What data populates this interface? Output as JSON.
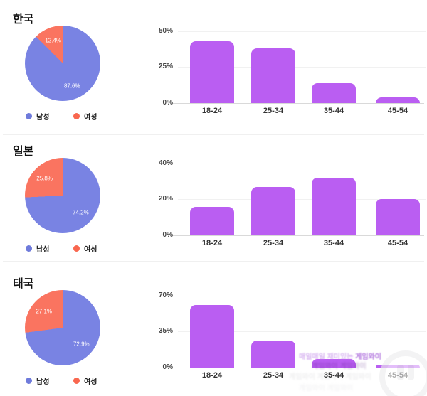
{
  "page": {
    "background": "#ffffff"
  },
  "colors": {
    "male": "#7983e3",
    "female": "#fa7460",
    "male_dot": "#6f7bdb",
    "female_dot": "#f9674f",
    "bar": "#ba5ef2",
    "grid": "#f1f1f1",
    "axis": "#d9d9d9",
    "pie_label": "#ffffff"
  },
  "legend": {
    "male": "남성",
    "female": "여성"
  },
  "chart_data": [
    {
      "country": "한국",
      "pie": {
        "type": "pie",
        "labels": [
          "남성",
          "여성"
        ],
        "values": [
          87.6,
          12.4
        ],
        "value_labels": [
          "87.6%",
          "12.4%"
        ],
        "legend_position": "bottom"
      },
      "bars": {
        "type": "bar",
        "categories": [
          "18-24",
          "25-34",
          "35-44",
          "45-54"
        ],
        "values": [
          43,
          38,
          14,
          4
        ],
        "unit": "%",
        "ylim": [
          0,
          50
        ],
        "yticks": [
          "50%",
          "25%",
          "0%"
        ],
        "grid": "horizontal"
      }
    },
    {
      "country": "일본",
      "pie": {
        "type": "pie",
        "labels": [
          "남성",
          "여성"
        ],
        "values": [
          74.2,
          25.8
        ],
        "value_labels": [
          "74.2%",
          "25.8%"
        ],
        "legend_position": "bottom"
      },
      "bars": {
        "type": "bar",
        "categories": [
          "18-24",
          "25-34",
          "35-44",
          "45-54"
        ],
        "values": [
          16,
          27,
          32,
          20
        ],
        "unit": "%",
        "ylim": [
          0,
          40
        ],
        "yticks": [
          "40%",
          "20%",
          "0%"
        ],
        "grid": "horizontal"
      }
    },
    {
      "country": "태국",
      "pie": {
        "type": "pie",
        "labels": [
          "남성",
          "여성"
        ],
        "values": [
          72.9,
          27.1
        ],
        "value_labels": [
          "72.9%",
          "27.1%"
        ],
        "legend_position": "bottom"
      },
      "bars": {
        "type": "bar",
        "categories": [
          "18-24",
          "25-34",
          "35-44",
          "45-54"
        ],
        "values": [
          61,
          26,
          8,
          3
        ],
        "unit": "%",
        "ylim": [
          0,
          70
        ],
        "yticks": [
          "70%",
          "35%",
          "0%"
        ],
        "grid": "horizontal"
      }
    }
  ],
  "watermark": {
    "prefix": "매일매일 재미있는",
    "brand": "게임와이",
    "on_bar_row": "게임와이 게임와이",
    "ghost_rows": [
      "게임와이 게임와이 게임와이",
      "게임와이 게임와이"
    ]
  }
}
